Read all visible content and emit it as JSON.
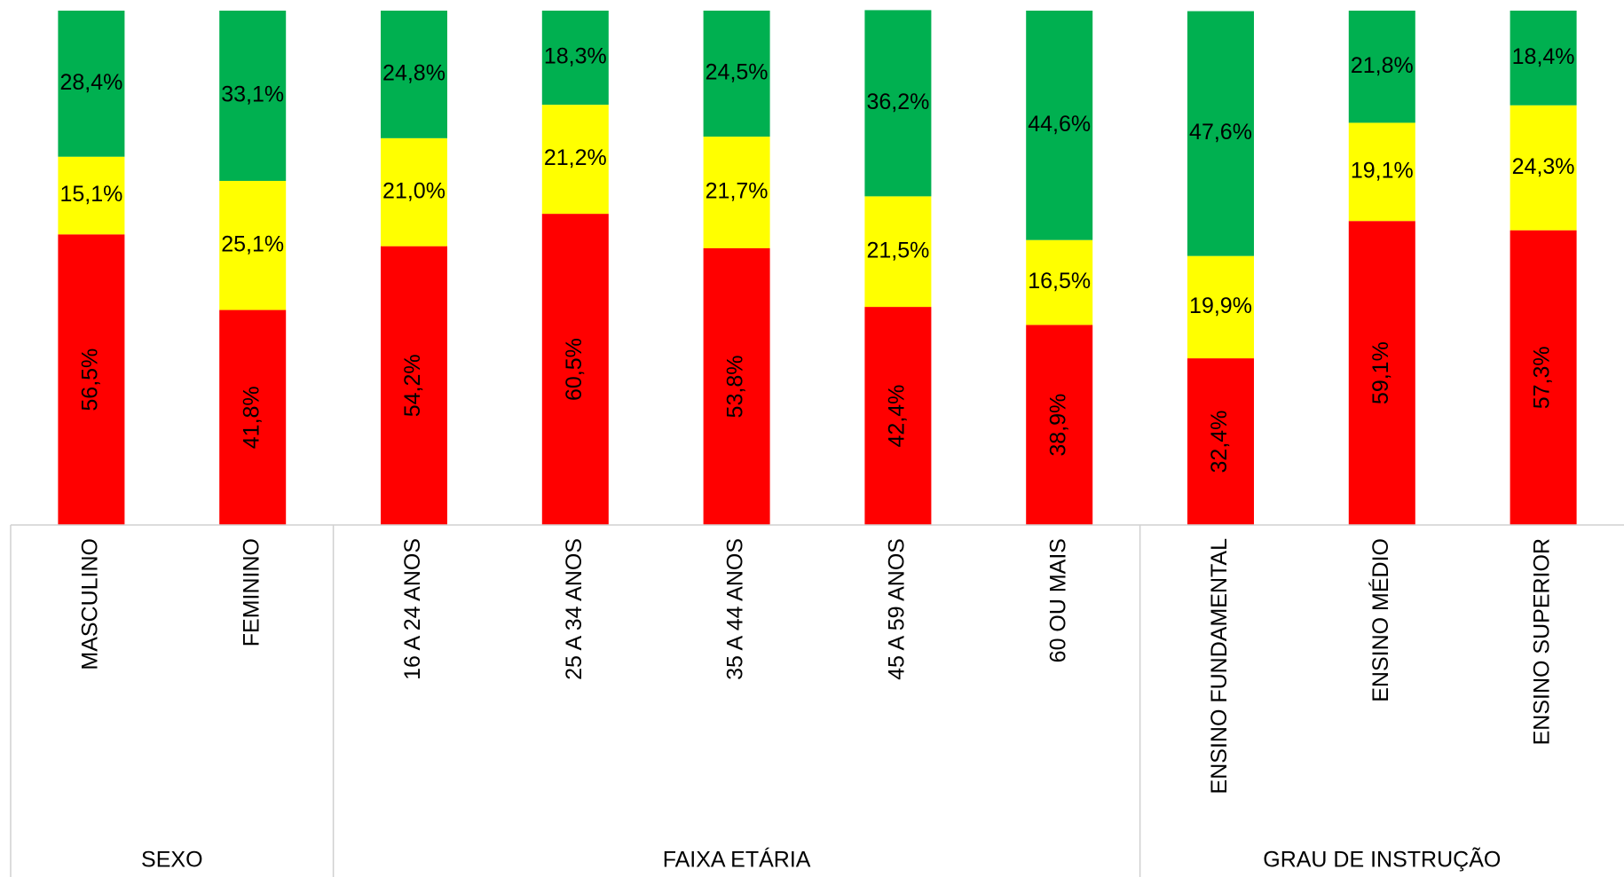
{
  "chart_data": {
    "type": "bar",
    "stacked": true,
    "groups": [
      {
        "label": "SEXO",
        "categories": [
          "MASCULINO",
          "FEMININO"
        ]
      },
      {
        "label": "FAIXA ETÁRIA",
        "categories": [
          "16 A 24 ANOS",
          "25 A 34 ANOS",
          "35 A 44 ANOS",
          "45 A 59 ANOS",
          "60 OU MAIS"
        ]
      },
      {
        "label": "GRAU DE INSTRUÇÃO",
        "categories": [
          "ENSINO FUNDAMENTAL",
          "ENSINO MÉDIO",
          "ENSINO SUPERIOR"
        ]
      }
    ],
    "series": [
      {
        "color": "#ff0000",
        "values": [
          56.5,
          41.8,
          54.2,
          60.5,
          53.8,
          42.4,
          38.9,
          32.4,
          59.1,
          57.3
        ],
        "value_labels": [
          "56,5%",
          "41,8%",
          "54,2%",
          "60,5%",
          "53,8%",
          "42,4%",
          "38,9%",
          "32,4%",
          "59,1%",
          "57,3%"
        ],
        "label_rotated": true
      },
      {
        "color": "#ffff00",
        "values": [
          15.1,
          25.1,
          21.0,
          21.2,
          21.7,
          21.5,
          16.5,
          19.9,
          19.1,
          24.3
        ],
        "value_labels": [
          "15,1%",
          "25,1%",
          "21,0%",
          "21,2%",
          "21,7%",
          "21,5%",
          "16,5%",
          "19,9%",
          "19,1%",
          "24,3%"
        ]
      },
      {
        "color": "#00b050",
        "values": [
          28.4,
          33.1,
          24.8,
          18.3,
          24.5,
          36.2,
          44.6,
          47.6,
          21.8,
          18.4
        ],
        "value_labels": [
          "28,4%",
          "33,1%",
          "24,8%",
          "18,3%",
          "24,5%",
          "36,2%",
          "44,6%",
          "47,6%",
          "21,8%",
          "18,4%"
        ]
      }
    ],
    "ylim": [
      0,
      100
    ]
  }
}
